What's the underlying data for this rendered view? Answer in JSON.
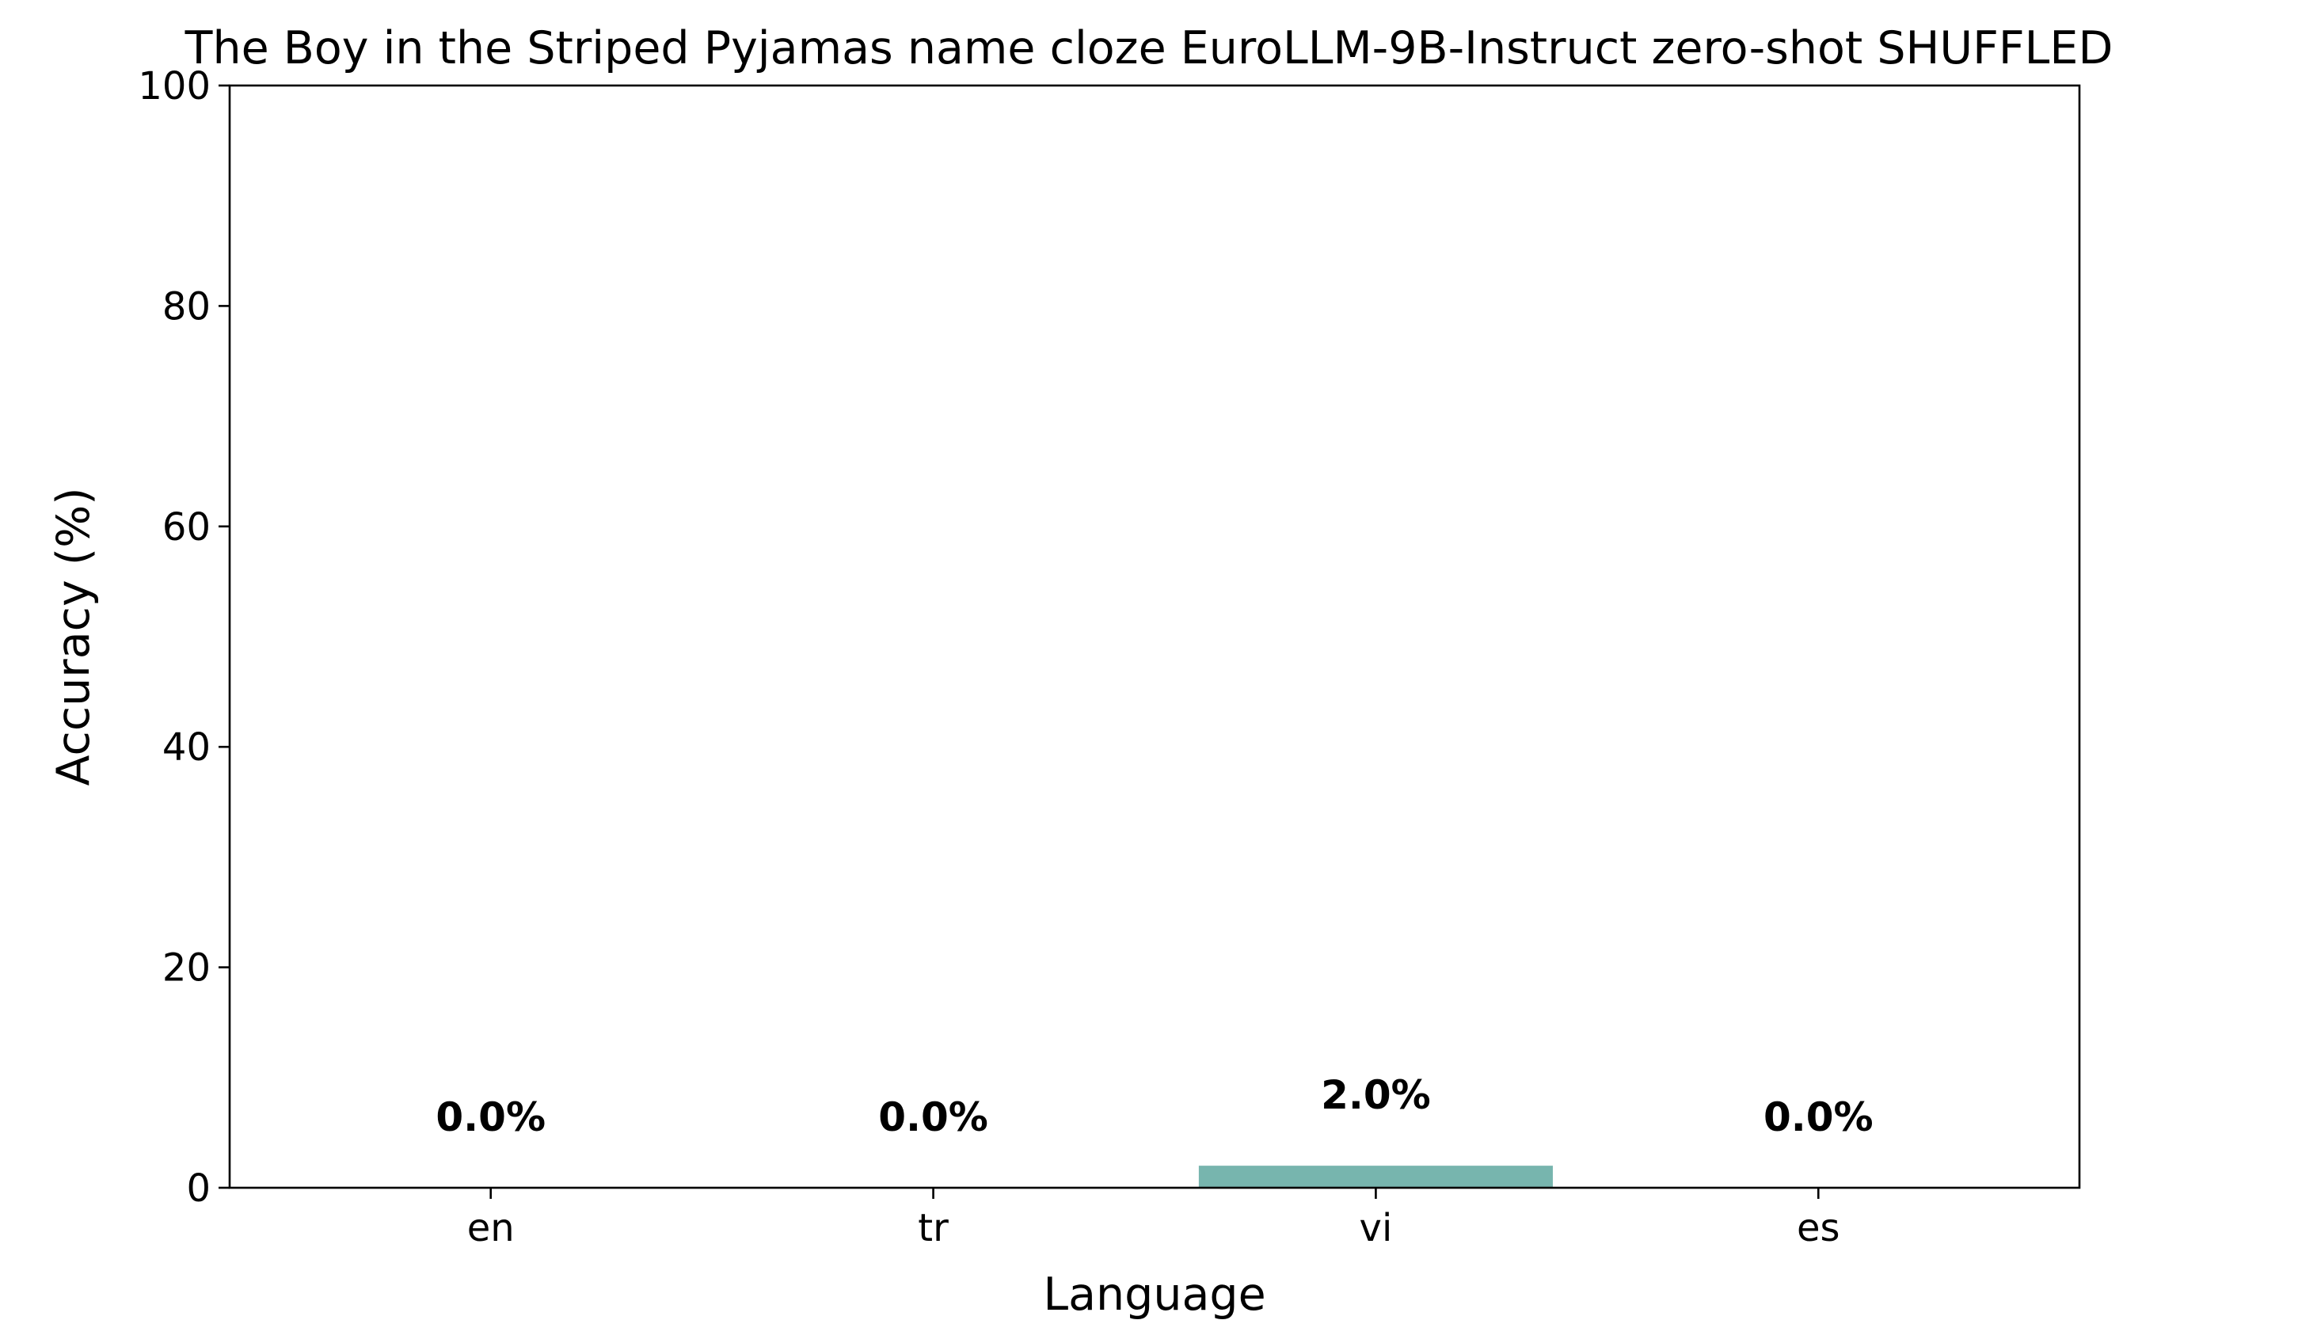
{
  "chart_data": {
    "type": "bar",
    "title": "The Boy in the Striped Pyjamas name cloze EuroLLM-9B-Instruct zero-shot SHUFFLED",
    "xlabel": "Language",
    "ylabel": "Accuracy (%)",
    "categories": [
      "en",
      "tr",
      "vi",
      "es"
    ],
    "values": [
      0.0,
      0.0,
      2.0,
      0.0
    ],
    "data_labels": [
      "0.0%",
      "0.0%",
      "2.0%",
      "0.0%"
    ],
    "ylim": [
      0,
      100
    ],
    "yticks": [
      0,
      20,
      40,
      60,
      80,
      100
    ],
    "ytick_labels": [
      "0",
      "20",
      "40",
      "60",
      "80",
      "100"
    ],
    "bar_color": "#77b5ae",
    "grid": false,
    "legend": "none"
  }
}
